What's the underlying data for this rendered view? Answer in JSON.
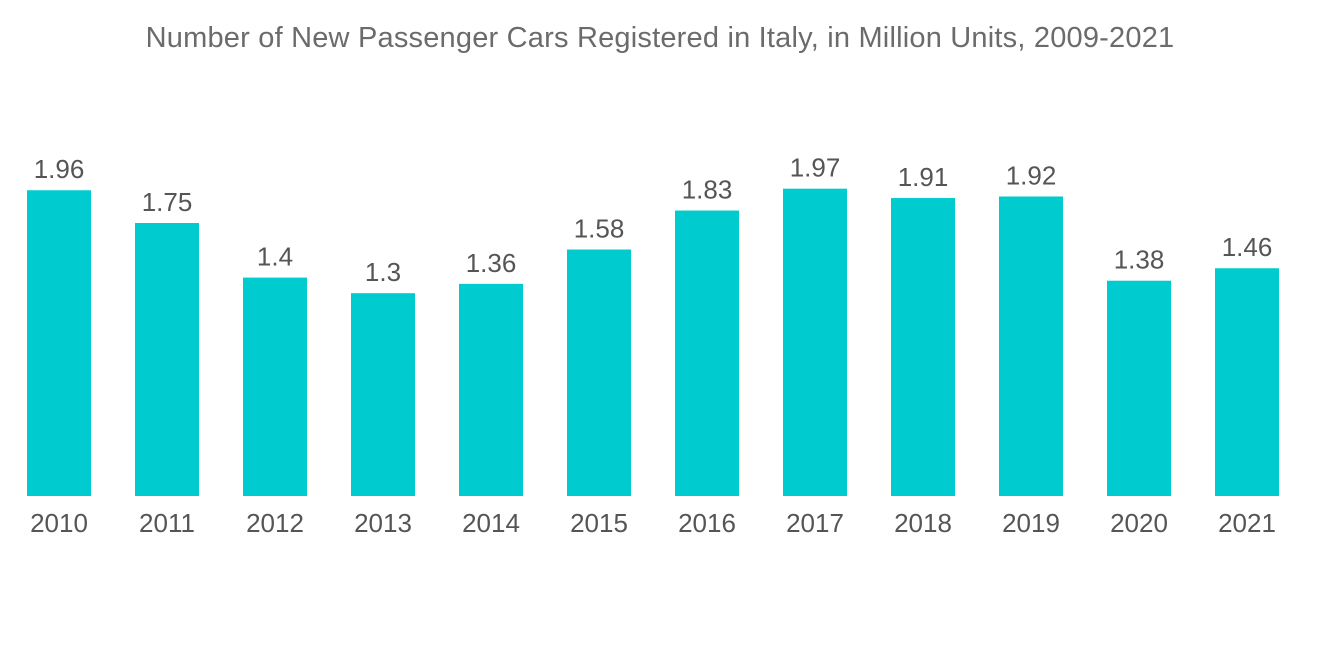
{
  "chart_data": {
    "type": "bar",
    "title": "Number of New Passenger Cars Registered in Italy, in Million Units, 2009-2021",
    "xlabel": "",
    "ylabel": "",
    "categories": [
      "2010",
      "2011",
      "2012",
      "2013",
      "2014",
      "2015",
      "2016",
      "2017",
      "2018",
      "2019",
      "2020",
      "2021"
    ],
    "values": [
      1.96,
      1.75,
      1.4,
      1.3,
      1.36,
      1.58,
      1.83,
      1.97,
      1.91,
      1.92,
      1.38,
      1.46
    ],
    "value_labels": [
      "1.96",
      "1.75",
      "1.4",
      "1.3",
      "1.36",
      "1.58",
      "1.83",
      "1.97",
      "1.91",
      "1.92",
      "1.38",
      "1.46"
    ],
    "ylim": [
      0,
      2.0
    ],
    "grid": false,
    "legend": "none",
    "bar_color": "#00CCD0"
  }
}
